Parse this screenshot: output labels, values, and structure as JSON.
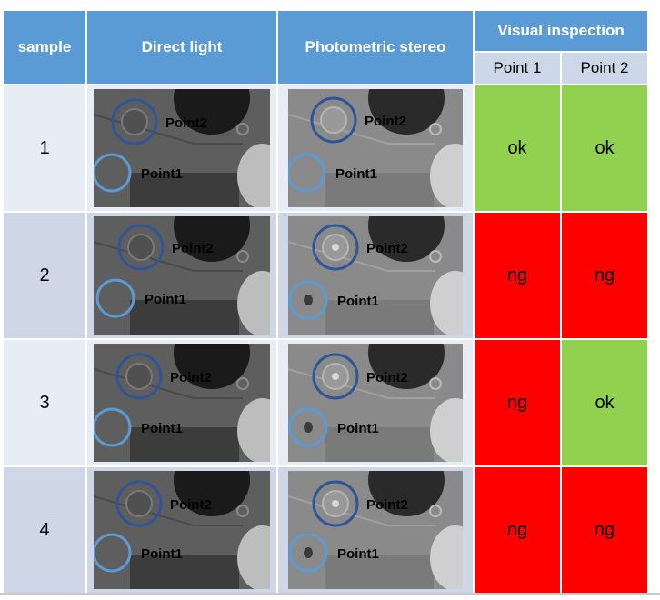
{
  "header": {
    "sample": "sample",
    "direct_light": "Direct light",
    "photometric_stereo": "Photometric stereo",
    "visual_inspection": "Visual inspection",
    "point1": "Point 1",
    "point2": "Point 2"
  },
  "image_labels": {
    "point1": "Point1",
    "point2": "Point2"
  },
  "colors": {
    "header_blue": "#5b9bd5",
    "subheader": "#ccd7e8",
    "ok_green": "#92d050",
    "ng_red": "#ff0000",
    "circle": "#5b9bd5",
    "circle_dark": "#2f5597"
  },
  "rows": [
    {
      "sample": "1",
      "point1": "ok",
      "point2": "ok"
    },
    {
      "sample": "2",
      "point1": "ng",
      "point2": "ng"
    },
    {
      "sample": "3",
      "point1": "ng",
      "point2": "ok"
    },
    {
      "sample": "4",
      "point1": "ng",
      "point2": "ng"
    }
  ]
}
